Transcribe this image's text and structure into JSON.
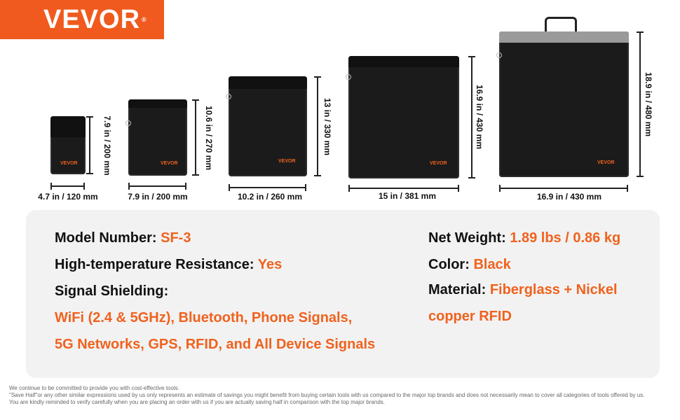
{
  "logo": {
    "text": "VEVOR",
    "mark": "®"
  },
  "bags": [
    {
      "width": "4.7 in / 120 mm",
      "height": "7.9 in / 200 mm"
    },
    {
      "width": "7.9 in / 200 mm",
      "height": "10.6 in / 270 mm"
    },
    {
      "width": "10.2 in / 260 mm",
      "height": "13 in / 330 mm"
    },
    {
      "width": "15 in / 381 mm",
      "height": "16.9 in / 430 mm"
    },
    {
      "width": "16.9 in / 430 mm",
      "height": "18.9 in / 480 mm"
    }
  ],
  "bag_brand": "VEVOR",
  "specs": {
    "model_label": "Model Number: ",
    "model_value": "SF-3",
    "temp_label": "High-temperature Resistance: ",
    "temp_value": "Yes",
    "signal_label": "Signal Shielding:",
    "signal_line1": "WiFi (2.4 & 5GHz), Bluetooth, Phone Signals,",
    "signal_line2": "5G Networks, GPS, RFID, and All Device Signals",
    "weight_label": "Net Weight: ",
    "weight_value": "1.89 lbs / 0.86 kg",
    "color_label": "Color: ",
    "color_value": "Black",
    "material_label": "Material: ",
    "material_value": "Fiberglass + Nickel",
    "material_line2": "copper RFID"
  },
  "footer": [
    "We continue to be committed to provide you with cost-effective tools.",
    "\"Save Half\"or any other similar expressions used by us only represents an estimate of savings you might benefit from buying certain tools with us compared to the major top brands and does not necessarily mean to cover all categories of tools offered by us.",
    "You are kindly reminded to verify carefully when you are placing an order with us if you are actually saving half in comparison with the top major brands."
  ],
  "colors": {
    "accent": "#f0621e",
    "panel": "#f2f2f2",
    "bag": "#1b1b1b"
  }
}
